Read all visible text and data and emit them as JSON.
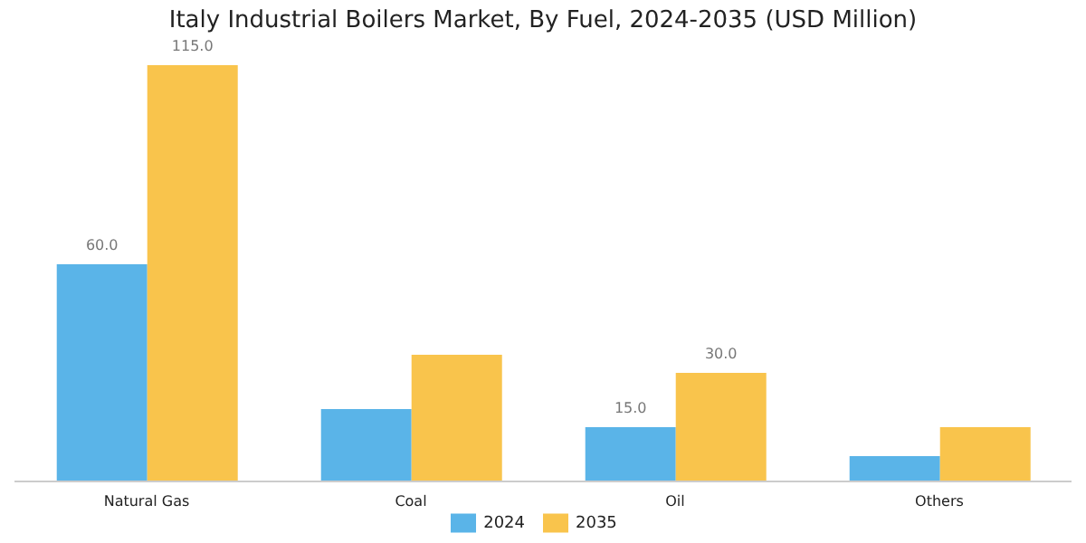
{
  "chart_data": {
    "type": "bar",
    "title": "Italy Industrial Boilers Market, By Fuel, 2024-2035 (USD Million)",
    "categories": [
      "Natural Gas",
      "Coal",
      "Oil",
      "Others"
    ],
    "series": [
      {
        "name": "2024",
        "color": "#5ab4e8",
        "values": [
          60,
          20,
          15,
          7
        ],
        "value_labels": [
          "60.0",
          null,
          "15.0",
          null
        ]
      },
      {
        "name": "2035",
        "color": "#f9c44c",
        "values": [
          115,
          35,
          30,
          15
        ],
        "value_labels": [
          "115.0",
          null,
          "30.0",
          null
        ]
      }
    ],
    "legend": "bottom",
    "tick_labels": "x"
  }
}
